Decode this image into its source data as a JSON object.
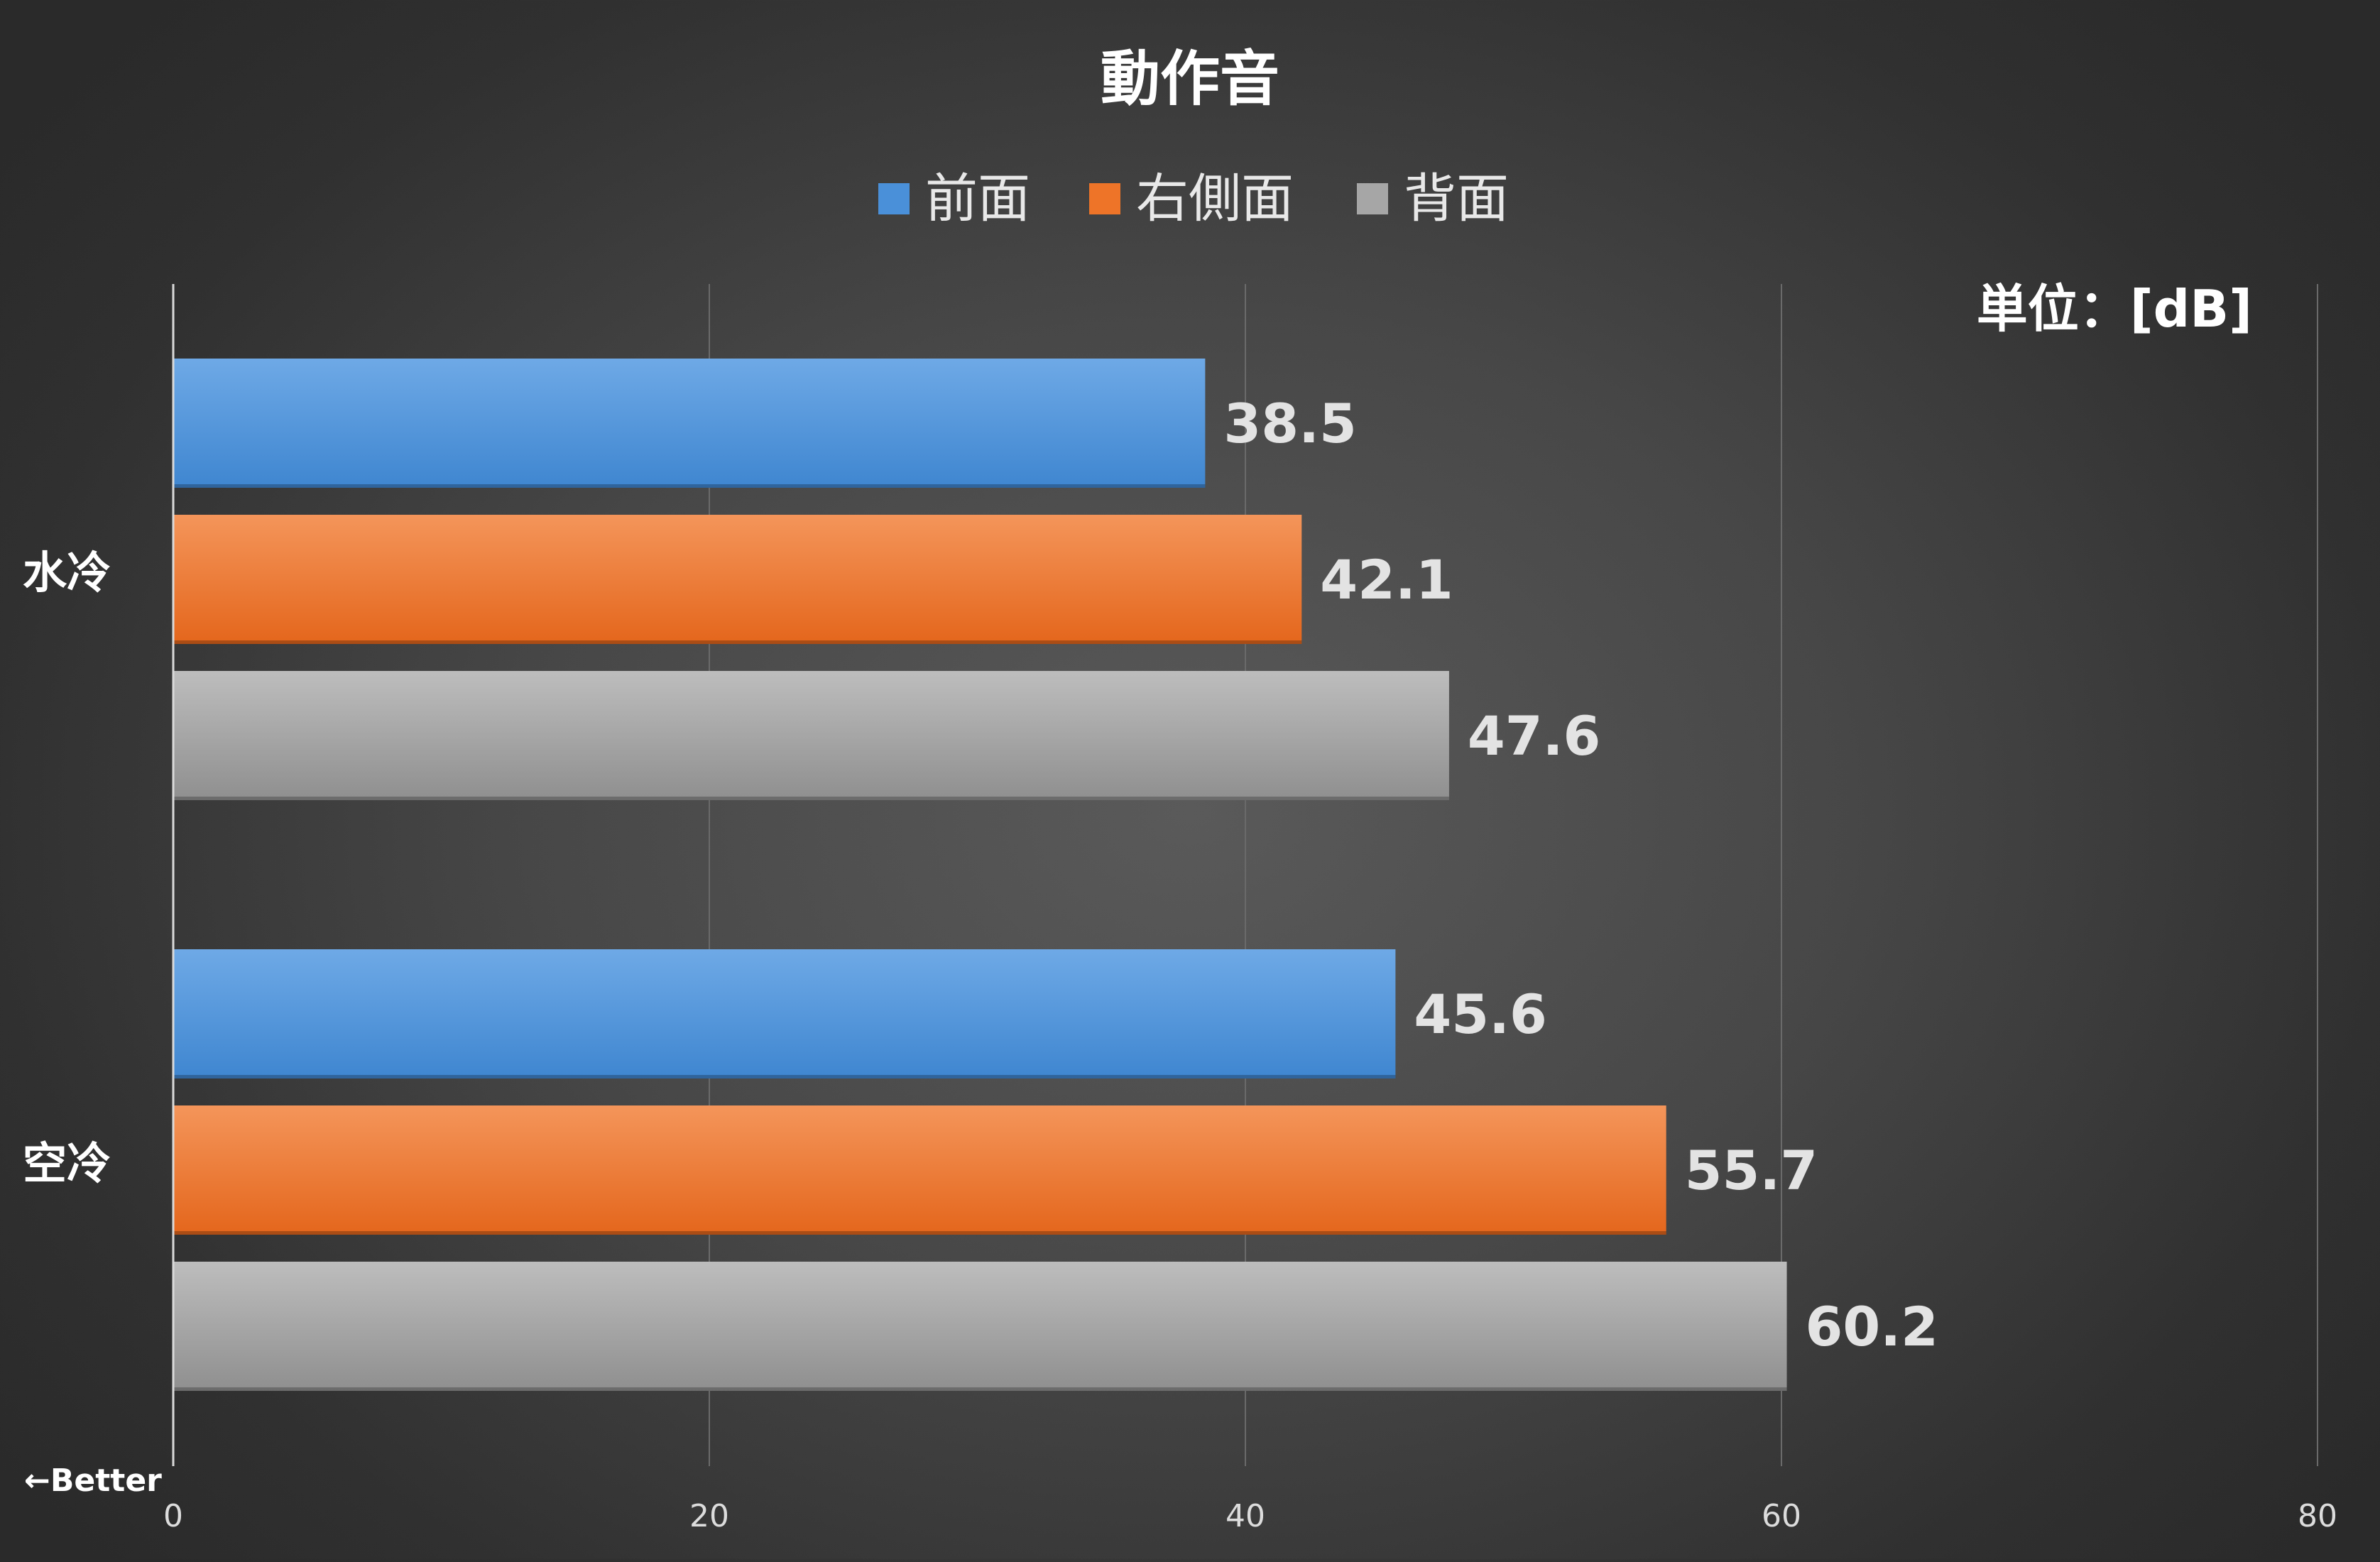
{
  "chart_data": {
    "type": "bar",
    "orientation": "horizontal",
    "title": "動作音",
    "unit_label": "単位：[dB]",
    "direction_note": "←Better",
    "categories": [
      "水冷",
      "空冷"
    ],
    "series": [
      {
        "name": "前面",
        "color": "#4a90d9",
        "values": [
          38.5,
          45.6
        ],
        "labels": [
          "38.5",
          "45.6"
        ]
      },
      {
        "name": "右側面",
        "color": "#ee7428",
        "values": [
          42.1,
          55.7
        ],
        "labels": [
          "42.1",
          "55.7"
        ]
      },
      {
        "name": "背面",
        "color": "#a6a6a6",
        "values": [
          47.6,
          60.2
        ],
        "labels": [
          "47.6",
          "60.2"
        ]
      }
    ],
    "xlim": [
      0,
      80
    ],
    "xticks": [
      "0",
      "20",
      "40",
      "60",
      "80"
    ],
    "grid": true,
    "legend_position": "top-center"
  }
}
